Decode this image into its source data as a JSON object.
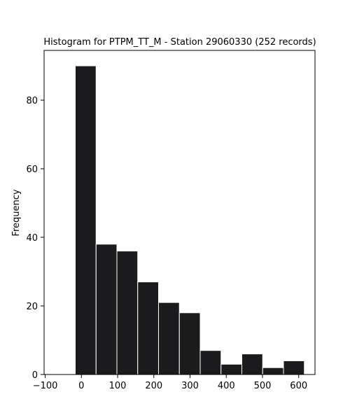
{
  "chart_data": {
    "type": "bar",
    "title": "Histogram for PTPM_TT_M - Station 29060330 (252 records)",
    "xlabel": "",
    "ylabel": "Frequency",
    "xlim": [
      -103,
      645
    ],
    "ylim": [
      0,
      94.5
    ],
    "xticks": [
      -100,
      0,
      100,
      200,
      300,
      400,
      500,
      600
    ],
    "yticks": [
      0,
      20,
      40,
      60,
      80
    ],
    "bin_edges": [
      -17,
      40.5,
      98,
      155.5,
      213,
      270.5,
      328,
      385.5,
      443,
      500.5,
      558,
      615.5
    ],
    "values": [
      90,
      38,
      36,
      27,
      21,
      18,
      7,
      3,
      6,
      2,
      4
    ],
    "bar_color": "#1b1b1e",
    "edge_color": "#ffffff",
    "grid": false,
    "legend": "none"
  }
}
